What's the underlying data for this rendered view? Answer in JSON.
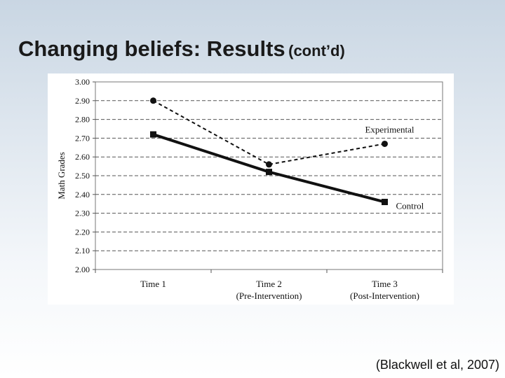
{
  "slide": {
    "title": "Changing beliefs: Results",
    "title_suffix": "(cont’d)",
    "citation": "(Blackwell et al, 2007)"
  },
  "chart_data": {
    "type": "line",
    "title": "",
    "ylabel": "Math Grades",
    "xlabel": "",
    "ylim": [
      2.0,
      3.0
    ],
    "yticks": [
      "2.00",
      "2.10",
      "2.20",
      "2.30",
      "2.40",
      "2.50",
      "2.60",
      "2.70",
      "2.80",
      "2.90",
      "3.00"
    ],
    "grid": "horizontal dashed",
    "categories": [
      {
        "label": "Time 1",
        "sublabel": ""
      },
      {
        "label": "Time 2",
        "sublabel": "(Pre-Intervention)"
      },
      {
        "label": "Time 3",
        "sublabel": "(Post-Intervention)"
      }
    ],
    "series": [
      {
        "name": "Experimental",
        "values": [
          2.9,
          2.56,
          2.67
        ],
        "line_style": "dashed",
        "marker": "circle",
        "color": "#111111"
      },
      {
        "name": "Control",
        "values": [
          2.72,
          2.52,
          2.36
        ],
        "line_style": "solid-thick",
        "marker": "square",
        "color": "#111111"
      }
    ]
  }
}
